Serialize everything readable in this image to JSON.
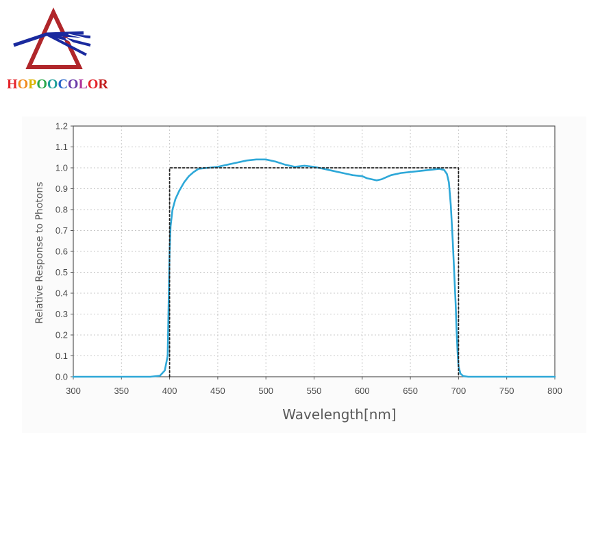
{
  "logo": {
    "text": "HOPOOCOLOR",
    "letter_colors": [
      "#e4242a",
      "#f08a1c",
      "#d9b300",
      "#2aa84a",
      "#1e9f9a",
      "#2563c9",
      "#6a3aa8",
      "#b0309a",
      "#e4242a",
      "#c21e1e"
    ]
  },
  "chart_data": {
    "type": "line",
    "title": "",
    "xlabel": "Wavelength[nm]",
    "ylabel": "Relative Response to Photons",
    "xlim": [
      300,
      800
    ],
    "ylim": [
      0,
      1.2
    ],
    "x_ticks": [
      "300",
      "350",
      "400",
      "450",
      "500",
      "550",
      "600",
      "650",
      "700",
      "750",
      "800"
    ],
    "y_ticks": [
      "0.0",
      "0.1",
      "0.2",
      "0.3",
      "0.4",
      "0.5",
      "0.6",
      "0.7",
      "0.8",
      "0.9",
      "1.0",
      "1.1",
      "1.2"
    ],
    "grid": true,
    "series": [
      {
        "style": "solid",
        "color": "#2ea8d8",
        "x": [
          300,
          380,
          390,
          395,
          398,
          399,
          400,
          401,
          403,
          406,
          410,
          415,
          420,
          425,
          430,
          440,
          450,
          460,
          470,
          480,
          490,
          500,
          510,
          520,
          530,
          540,
          550,
          560,
          570,
          580,
          590,
          600,
          605,
          610,
          615,
          620,
          625,
          630,
          640,
          650,
          660,
          670,
          680,
          685,
          688,
          690,
          692,
          694,
          695,
          696,
          697,
          698,
          699,
          700,
          702,
          705,
          710,
          720,
          800
        ],
        "y": [
          0.0,
          0.0,
          0.005,
          0.03,
          0.1,
          0.35,
          0.6,
          0.72,
          0.8,
          0.85,
          0.89,
          0.93,
          0.96,
          0.98,
          0.995,
          1.0,
          1.005,
          1.015,
          1.025,
          1.035,
          1.04,
          1.04,
          1.03,
          1.015,
          1.005,
          1.01,
          1.005,
          0.995,
          0.985,
          0.975,
          0.965,
          0.96,
          0.95,
          0.945,
          0.94,
          0.945,
          0.955,
          0.965,
          0.975,
          0.98,
          0.985,
          0.99,
          0.995,
          0.99,
          0.97,
          0.93,
          0.82,
          0.65,
          0.55,
          0.45,
          0.35,
          0.22,
          0.12,
          0.05,
          0.015,
          0.003,
          0.0,
          0.0,
          0.0
        ]
      },
      {
        "style": "dashed",
        "color": "#222222",
        "x": [
          400,
          400,
          700,
          700
        ],
        "y": [
          0.0,
          1.0,
          1.0,
          0.0
        ]
      }
    ]
  }
}
